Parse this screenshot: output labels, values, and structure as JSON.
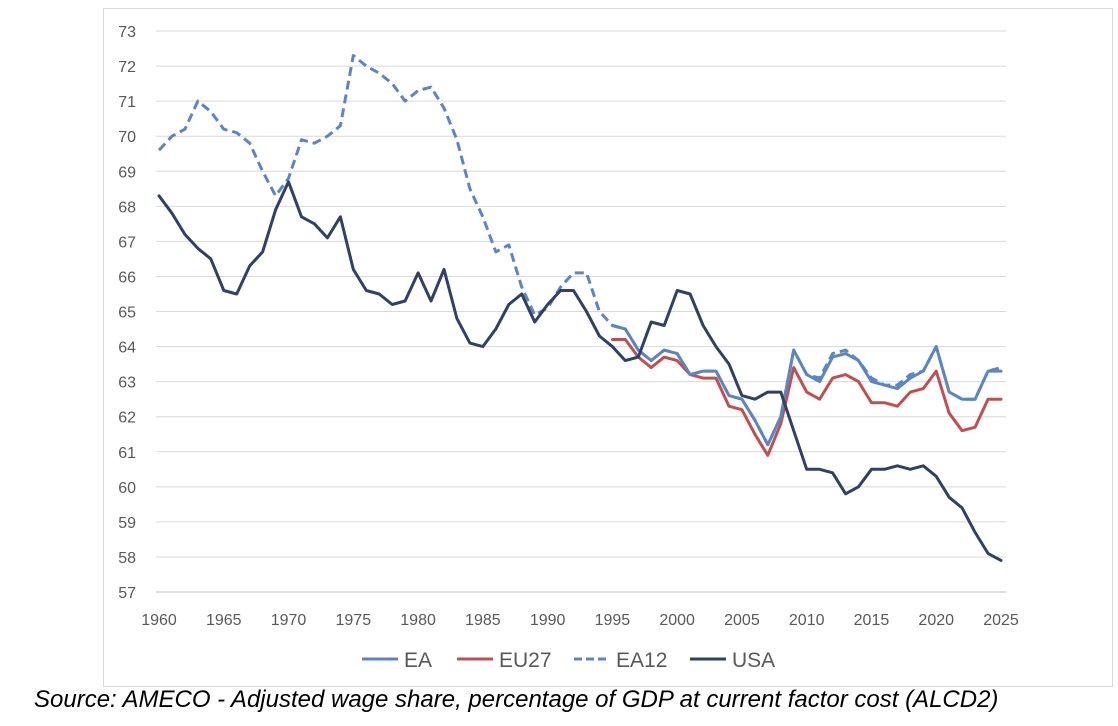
{
  "caption": "Source: AMECO - Adjusted wage share, percentage of GDP at current factor cost (ALCD2)",
  "chart_data": {
    "type": "line",
    "title": "",
    "xlabel": "",
    "ylabel": "",
    "xlim": [
      1960,
      2025
    ],
    "ylim": [
      57,
      73
    ],
    "x_ticks": [
      1960,
      1965,
      1970,
      1975,
      1980,
      1985,
      1990,
      1995,
      2000,
      2005,
      2010,
      2015,
      2020,
      2025
    ],
    "y_ticks": [
      57,
      58,
      59,
      60,
      61,
      62,
      63,
      64,
      65,
      66,
      67,
      68,
      69,
      70,
      71,
      72,
      73
    ],
    "grid": "horizontal",
    "legend_position": "bottom",
    "series": [
      {
        "name": "EA",
        "color": "#5b86c5",
        "dash": "solid",
        "x": [
          1995,
          1996,
          1997,
          1998,
          1999,
          2000,
          2001,
          2002,
          2003,
          2004,
          2005,
          2006,
          2007,
          2008,
          2009,
          2010,
          2011,
          2012,
          2013,
          2014,
          2015,
          2016,
          2017,
          2018,
          2019,
          2020,
          2021,
          2022,
          2023,
          2024,
          2025
        ],
        "values": [
          64.6,
          64.5,
          63.9,
          63.6,
          63.9,
          63.8,
          63.2,
          63.3,
          63.3,
          62.6,
          62.5,
          61.9,
          61.2,
          62.0,
          63.9,
          63.2,
          63.0,
          63.7,
          63.8,
          63.6,
          63.0,
          62.9,
          62.8,
          63.1,
          63.3,
          64.0,
          62.7,
          62.5,
          62.5,
          63.3,
          63.3
        ]
      },
      {
        "name": "EU27",
        "color": "#c0504d",
        "dash": "solid",
        "x": [
          1995,
          1996,
          1997,
          1998,
          1999,
          2000,
          2001,
          2002,
          2003,
          2004,
          2005,
          2006,
          2007,
          2008,
          2009,
          2010,
          2011,
          2012,
          2013,
          2014,
          2015,
          2016,
          2017,
          2018,
          2019,
          2020,
          2021,
          2022,
          2023,
          2024,
          2025
        ],
        "values": [
          64.2,
          64.2,
          63.7,
          63.4,
          63.7,
          63.6,
          63.2,
          63.1,
          63.1,
          62.3,
          62.2,
          61.5,
          60.9,
          61.8,
          63.4,
          62.7,
          62.5,
          63.1,
          63.2,
          63.0,
          62.4,
          62.4,
          62.3,
          62.7,
          62.8,
          63.3,
          62.1,
          61.6,
          61.7,
          62.5,
          62.5
        ]
      },
      {
        "name": "EA12",
        "color": "#5b86c5",
        "dash": "dashed",
        "x": [
          1960,
          1961,
          1962,
          1963,
          1964,
          1965,
          1966,
          1967,
          1968,
          1969,
          1970,
          1971,
          1972,
          1973,
          1974,
          1975,
          1976,
          1977,
          1978,
          1979,
          1980,
          1981,
          1982,
          1983,
          1984,
          1985,
          1986,
          1987,
          1988,
          1989,
          1990,
          1991,
          1992,
          1993,
          1994,
          1995,
          1996,
          1997,
          1998,
          1999,
          2000,
          2001,
          2002,
          2003,
          2004,
          2005,
          2006,
          2007,
          2008,
          2009,
          2010,
          2011,
          2012,
          2013,
          2014,
          2015,
          2016,
          2017,
          2018,
          2019,
          2020,
          2021,
          2022,
          2023,
          2024,
          2025
        ],
        "values": [
          69.6,
          70.0,
          70.2,
          71.0,
          70.7,
          70.2,
          70.1,
          69.8,
          69.0,
          68.3,
          68.8,
          69.9,
          69.8,
          70.0,
          70.3,
          72.3,
          72.0,
          71.8,
          71.5,
          71.0,
          71.3,
          71.4,
          70.8,
          69.9,
          68.5,
          67.7,
          66.7,
          66.9,
          65.7,
          64.9,
          65.1,
          65.7,
          66.1,
          66.1,
          65.0,
          64.6,
          64.5,
          63.9,
          63.6,
          63.9,
          63.8,
          63.2,
          63.3,
          63.3,
          62.6,
          62.5,
          61.9,
          61.2,
          62.0,
          63.9,
          63.2,
          63.1,
          63.8,
          63.9,
          63.6,
          63.1,
          62.9,
          62.9,
          63.2,
          63.3,
          64.0,
          62.7,
          62.5,
          62.5,
          63.3,
          63.4
        ]
      },
      {
        "name": "USA",
        "color": "#2e4166",
        "dash": "solid",
        "x": [
          1960,
          1961,
          1962,
          1963,
          1964,
          1965,
          1966,
          1967,
          1968,
          1969,
          1970,
          1971,
          1972,
          1973,
          1974,
          1975,
          1976,
          1977,
          1978,
          1979,
          1980,
          1981,
          1982,
          1983,
          1984,
          1985,
          1986,
          1987,
          1988,
          1989,
          1990,
          1991,
          1992,
          1993,
          1994,
          1995,
          1996,
          1997,
          1998,
          1999,
          2000,
          2001,
          2002,
          2003,
          2004,
          2005,
          2006,
          2007,
          2008,
          2009,
          2010,
          2011,
          2012,
          2013,
          2014,
          2015,
          2016,
          2017,
          2018,
          2019,
          2020,
          2021,
          2022,
          2023,
          2024,
          2025
        ],
        "values": [
          68.3,
          67.8,
          67.2,
          66.8,
          66.5,
          65.6,
          65.5,
          66.3,
          66.7,
          67.9,
          68.7,
          67.7,
          67.5,
          67.1,
          67.7,
          66.2,
          65.6,
          65.5,
          65.2,
          65.3,
          66.1,
          65.3,
          66.2,
          64.8,
          64.1,
          64.0,
          64.5,
          65.2,
          65.5,
          64.7,
          65.2,
          65.6,
          65.6,
          65.0,
          64.3,
          64.0,
          63.6,
          63.7,
          64.7,
          64.6,
          65.6,
          65.5,
          64.6,
          64.0,
          63.5,
          62.6,
          62.5,
          62.7,
          62.7,
          61.6,
          60.5,
          60.5,
          60.4,
          59.8,
          60.0,
          60.5,
          60.5,
          60.6,
          60.5,
          60.6,
          60.3,
          59.7,
          59.4,
          58.7,
          58.1,
          57.9
        ]
      }
    ]
  }
}
